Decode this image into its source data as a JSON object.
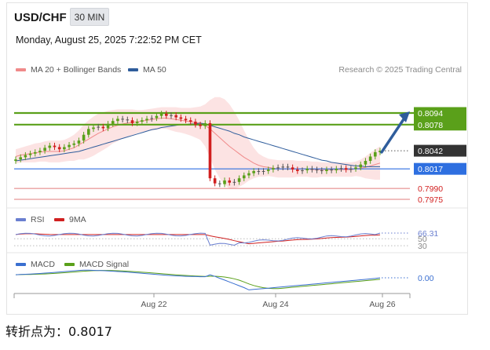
{
  "header": {
    "symbol": "USD/CHF",
    "timeframe": "30 MIN",
    "datetime": "Monday, August 25, 2025 7:22:52 PM CET"
  },
  "legend": {
    "ma20_label": "MA 20 + Bollinger Bands",
    "ma50_label": "MA 50",
    "credit": "Research © 2025 Trading Central",
    "rsi_label": "RSI",
    "rsi_ma_label": "9MA",
    "macd_label": "MACD",
    "macd_signal_label": "MACD Signal"
  },
  "colors": {
    "green": "#5aa01a",
    "blue_pivot": "#2e6fe0",
    "red_support": "#e07c7c",
    "ma20": "#f08a8a",
    "ma50": "#2f5d9c",
    "bollinger_fill": "#fbdada",
    "candle_up": "#5aa01a",
    "candle_down": "#d11f1f",
    "candle_neutral": "#555555",
    "arrow": "#2f5d9c",
    "rsi": "#6a7fd0",
    "rsi_ma": "#d02020",
    "macd": "#3a6fd0",
    "macd_signal": "#5aa01a",
    "current_price_bg": "#333333"
  },
  "chart_data": {
    "type": "candlestick",
    "x_ticks": [
      "Aug 22",
      "Aug 24",
      "Aug 26"
    ],
    "price_levels": [
      {
        "label": "0.8094",
        "value": 0.8094,
        "role": "target"
      },
      {
        "label": "0.8078",
        "value": 0.8078,
        "role": "target"
      },
      {
        "label": "0.8042",
        "value": 0.8042,
        "role": "current"
      },
      {
        "label": "0.8017",
        "value": 0.8017,
        "role": "pivot"
      },
      {
        "label": "0.7990",
        "value": 0.799,
        "role": "support"
      },
      {
        "label": "0.7975",
        "value": 0.7975,
        "role": "support"
      }
    ],
    "price_ylim": [
      0.7965,
      0.8125
    ],
    "close": [
      0.803,
      0.8033,
      0.8036,
      0.8038,
      0.804,
      0.8042,
      0.8046,
      0.8049,
      0.8047,
      0.8044,
      0.8047,
      0.805,
      0.8052,
      0.8056,
      0.8064,
      0.8072,
      0.8074,
      0.8075,
      0.8073,
      0.8079,
      0.8083,
      0.8086,
      0.8085,
      0.8084,
      0.808,
      0.8082,
      0.8084,
      0.8086,
      0.8087,
      0.809,
      0.8093,
      0.809,
      0.8091,
      0.8088,
      0.8086,
      0.8084,
      0.8082,
      0.8078,
      0.8076,
      0.808,
      0.8004,
      0.7997,
      0.7996,
      0.8001,
      0.7998,
      0.7999,
      0.8004,
      0.8008,
      0.8011,
      0.8014,
      0.8013,
      0.8014,
      0.8016,
      0.8018,
      0.8019,
      0.802,
      0.8019,
      0.8016,
      0.8014,
      0.8015,
      0.8017,
      0.8016,
      0.8015,
      0.8014,
      0.8016,
      0.8015,
      0.8017,
      0.8018,
      0.8016,
      0.8017,
      0.8019,
      0.8023,
      0.8028,
      0.8034,
      0.804,
      0.8042
    ],
    "ma20": [
      0.8034,
      0.8036,
      0.8037,
      0.8038,
      0.8039,
      0.804,
      0.8041,
      0.8041,
      0.8041,
      0.8041,
      0.8042,
      0.8044,
      0.8046,
      0.805,
      0.8054,
      0.8058,
      0.8062,
      0.8066,
      0.8069,
      0.8072,
      0.8075,
      0.8077,
      0.8079,
      0.808,
      0.8081,
      0.8082,
      0.8083,
      0.8084,
      0.8085,
      0.8086,
      0.8087,
      0.8087,
      0.8086,
      0.8085,
      0.8084,
      0.8083,
      0.8082,
      0.8081,
      0.808,
      0.8077,
      0.8072,
      0.8066,
      0.806,
      0.8054,
      0.8048,
      0.8043,
      0.8038,
      0.8033,
      0.8029,
      0.8025,
      0.8022,
      0.802,
      0.8019,
      0.8018,
      0.8017,
      0.8017,
      0.8017,
      0.8017,
      0.8017,
      0.8017,
      0.8017,
      0.8016,
      0.8016,
      0.8016,
      0.8016,
      0.8016,
      0.8016,
      0.8016,
      0.8016,
      0.8016,
      0.8017,
      0.8018,
      0.8019,
      0.8021,
      0.8023,
      0.8025
    ],
    "bb_upper": [
      0.8044,
      0.8046,
      0.8048,
      0.805,
      0.8052,
      0.8053,
      0.8055,
      0.8056,
      0.8056,
      0.8056,
      0.8057,
      0.806,
      0.8064,
      0.807,
      0.8078,
      0.8084,
      0.8089,
      0.8093,
      0.8095,
      0.8097,
      0.8098,
      0.8099,
      0.8099,
      0.8099,
      0.8099,
      0.8098,
      0.8098,
      0.8099,
      0.81,
      0.8101,
      0.8102,
      0.8102,
      0.8102,
      0.8102,
      0.8101,
      0.8101,
      0.8101,
      0.8102,
      0.8103,
      0.8106,
      0.8112,
      0.8116,
      0.8116,
      0.8113,
      0.8106,
      0.8096,
      0.8084,
      0.807,
      0.8057,
      0.8046,
      0.8038,
      0.8034,
      0.8031,
      0.803,
      0.8029,
      0.8029,
      0.8029,
      0.8029,
      0.8028,
      0.8028,
      0.8028,
      0.8027,
      0.8027,
      0.8026,
      0.8026,
      0.8026,
      0.8026,
      0.8026,
      0.8026,
      0.8026,
      0.8027,
      0.803,
      0.8034,
      0.8039,
      0.8044,
      0.8048
    ],
    "bb_lower": [
      0.8024,
      0.8026,
      0.8026,
      0.8026,
      0.8026,
      0.8027,
      0.8027,
      0.8026,
      0.8026,
      0.8026,
      0.8027,
      0.8028,
      0.8028,
      0.803,
      0.803,
      0.8032,
      0.8035,
      0.8039,
      0.8043,
      0.8047,
      0.8052,
      0.8055,
      0.8059,
      0.8061,
      0.8063,
      0.8066,
      0.8068,
      0.8069,
      0.807,
      0.8071,
      0.8072,
      0.8072,
      0.807,
      0.8068,
      0.8067,
      0.8065,
      0.8063,
      0.806,
      0.8057,
      0.8048,
      0.8032,
      0.8016,
      0.8004,
      0.7995,
      0.799,
      0.799,
      0.7992,
      0.7996,
      0.8001,
      0.8004,
      0.8006,
      0.8006,
      0.8007,
      0.8006,
      0.8005,
      0.8005,
      0.8005,
      0.8005,
      0.8006,
      0.8006,
      0.8006,
      0.8005,
      0.8005,
      0.8006,
      0.8006,
      0.8006,
      0.8006,
      0.8006,
      0.8006,
      0.8006,
      0.8007,
      0.8006,
      0.8004,
      0.8003,
      0.8002,
      0.8002
    ],
    "ma50": [
      0.8028,
      0.8029,
      0.803,
      0.8031,
      0.8032,
      0.8033,
      0.8034,
      0.8035,
      0.8036,
      0.8037,
      0.8038,
      0.8039,
      0.804,
      0.8041,
      0.8043,
      0.8045,
      0.8047,
      0.8049,
      0.8051,
      0.8053,
      0.8055,
      0.8057,
      0.8059,
      0.8061,
      0.8063,
      0.8065,
      0.8067,
      0.8069,
      0.8071,
      0.8072,
      0.8074,
      0.8075,
      0.8076,
      0.8077,
      0.8078,
      0.8078,
      0.8079,
      0.8079,
      0.808,
      0.8079,
      0.8077,
      0.8075,
      0.8073,
      0.8071,
      0.8069,
      0.8066,
      0.8064,
      0.8061,
      0.8059,
      0.8057,
      0.8055,
      0.8053,
      0.8051,
      0.8049,
      0.8047,
      0.8045,
      0.8043,
      0.8041,
      0.8039,
      0.8037,
      0.8035,
      0.8033,
      0.8031,
      0.8029,
      0.8028,
      0.8026,
      0.8025,
      0.8024,
      0.8023,
      0.8022,
      0.8021,
      0.8021,
      0.802,
      0.802,
      0.802,
      0.802
    ],
    "forecast_arrow": {
      "from": 0.804,
      "to": 0.8094
    },
    "rsi": {
      "current_label": "66.31",
      "current": 66.31,
      "levels": [
        {
          "label": "50",
          "value": 50
        },
        {
          "label": "30",
          "value": 30
        }
      ],
      "ylim": [
        20,
        80
      ]
    },
    "macd": {
      "current_label": "0.00",
      "current": 0.0
    }
  },
  "footer": {
    "pivot_text": "转折点为：0.8017"
  }
}
